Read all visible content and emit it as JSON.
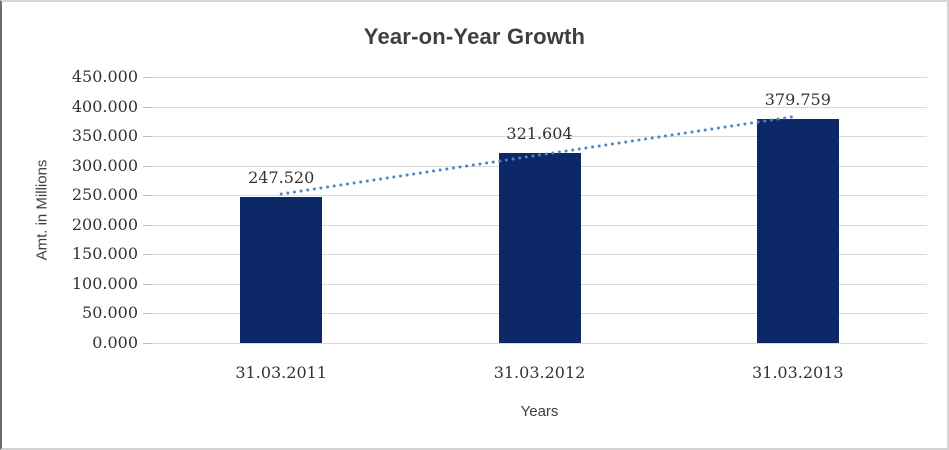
{
  "chart_data": {
    "type": "bar",
    "title": "Year-on-Year Growth",
    "xlabel": "Years",
    "ylabel": "Amt. in Millions",
    "categories": [
      "31.03.2011",
      "31.03.2012",
      "31.03.2013"
    ],
    "values": [
      247.52,
      321.604,
      379.759
    ],
    "data_labels": [
      "247.520",
      "321.604",
      "379.759"
    ],
    "y_tick_labels": [
      "450.000",
      "400.000",
      "350.000",
      "300.000",
      "250.000",
      "200.000",
      "150.000",
      "100.000",
      "50.000",
      "0.000"
    ],
    "ylim": [
      0,
      450
    ],
    "y_tick_step": 50,
    "grid": "horizontal",
    "legend": "none",
    "bar_color": "#0C2866",
    "text_color": "#333333",
    "gridline_color": "#D9D9D9",
    "trendline": {
      "style": "dotted",
      "color": "#4C86C6",
      "start_value": 252,
      "end_value": 384
    }
  }
}
